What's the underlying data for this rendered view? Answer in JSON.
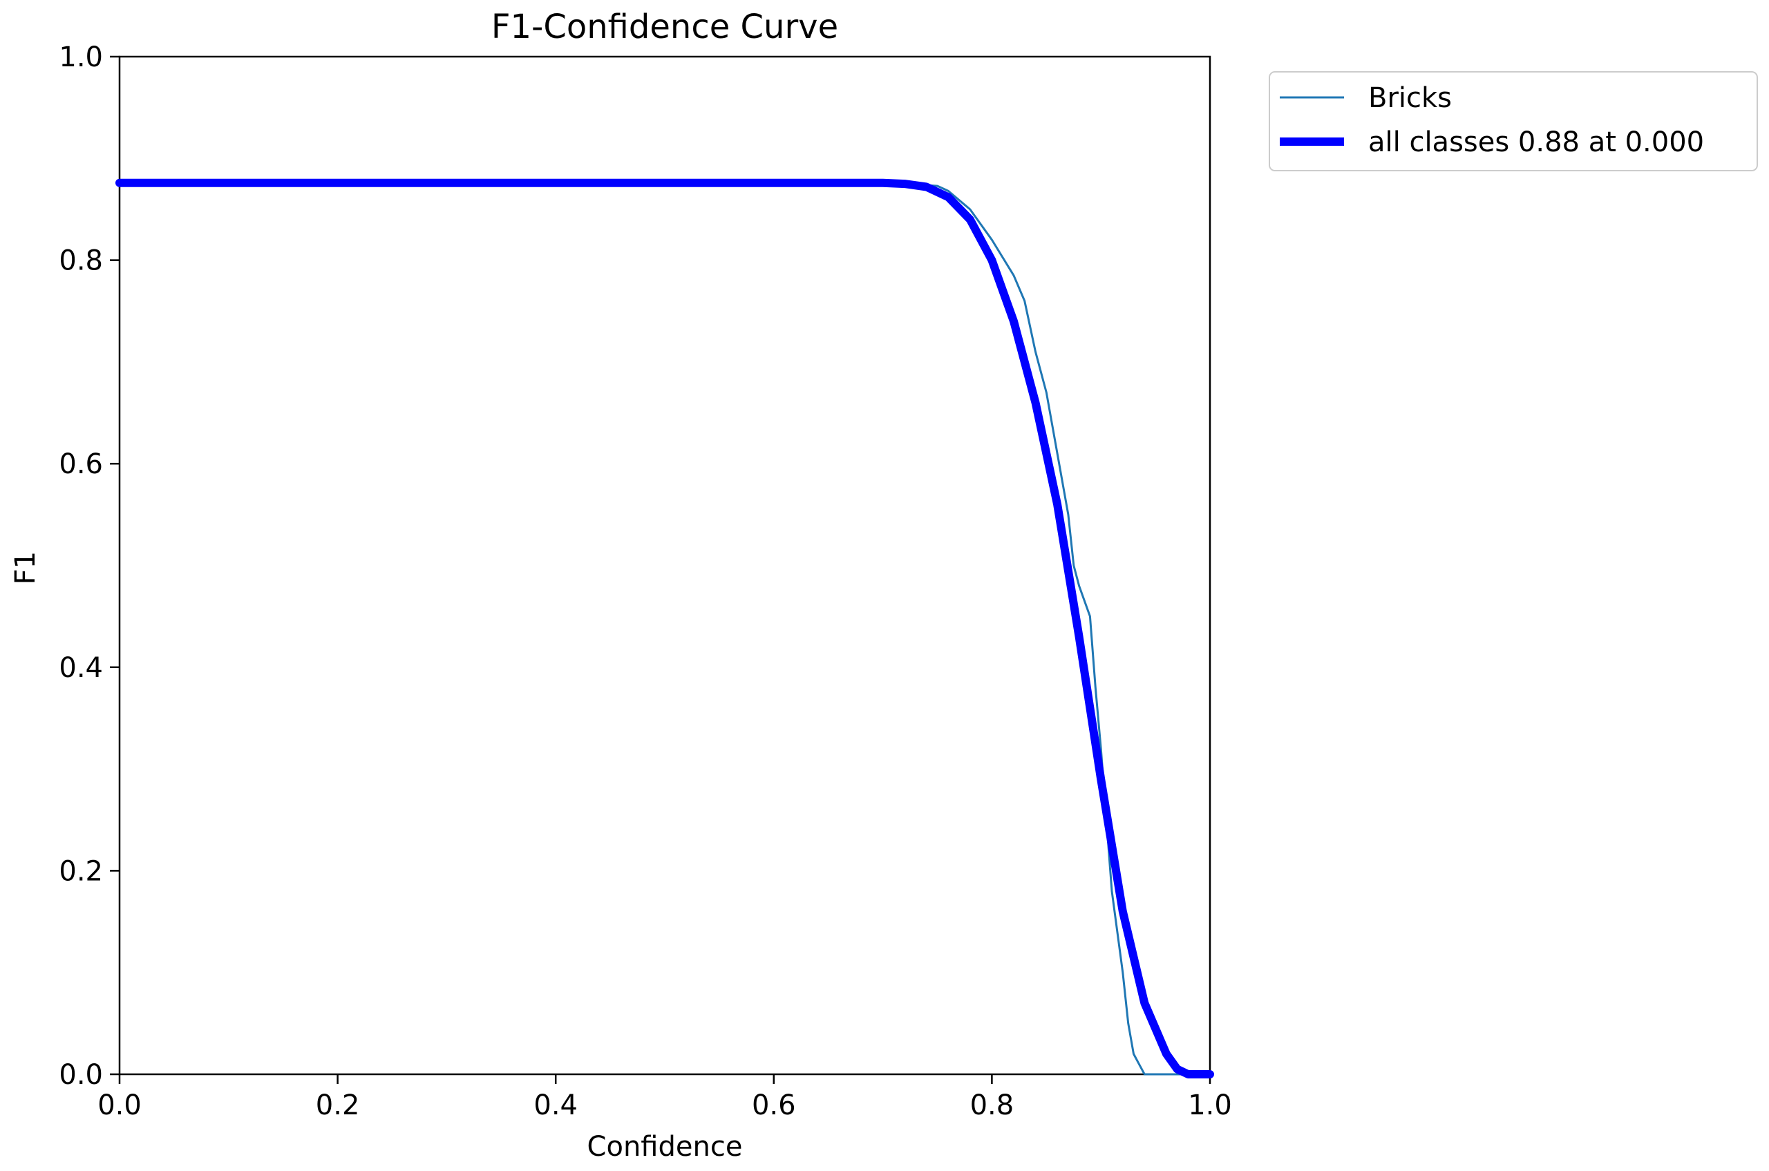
{
  "chart_data": {
    "type": "line",
    "title": "F1-Confidence Curve",
    "xlabel": "Confidence",
    "ylabel": "F1",
    "xlim": [
      0.0,
      1.0
    ],
    "ylim": [
      0.0,
      1.0
    ],
    "xticks": [
      "0.0",
      "0.2",
      "0.4",
      "0.6",
      "0.8",
      "1.0"
    ],
    "yticks": [
      "0.0",
      "0.2",
      "0.4",
      "0.6",
      "0.8",
      "1.0"
    ],
    "grid": false,
    "legend_position": "outside-top-right",
    "series": [
      {
        "name": "Bricks",
        "color": "#1f77b4",
        "x": [
          0.0,
          0.72,
          0.75,
          0.76,
          0.78,
          0.8,
          0.82,
          0.83,
          0.84,
          0.85,
          0.86,
          0.87,
          0.875,
          0.88,
          0.89,
          0.895,
          0.9,
          0.905,
          0.91,
          0.915,
          0.92,
          0.925,
          0.93,
          0.935,
          0.94,
          0.95,
          1.0
        ],
        "y": [
          0.875,
          0.875,
          0.873,
          0.868,
          0.85,
          0.82,
          0.785,
          0.76,
          0.71,
          0.67,
          0.61,
          0.55,
          0.5,
          0.48,
          0.45,
          0.38,
          0.32,
          0.25,
          0.18,
          0.14,
          0.1,
          0.05,
          0.02,
          0.01,
          0.0,
          0.0,
          0.0
        ]
      },
      {
        "name": "all classes 0.88 at 0.000",
        "color": "#0000ff",
        "x": [
          0.0,
          0.7,
          0.72,
          0.74,
          0.76,
          0.78,
          0.8,
          0.82,
          0.84,
          0.86,
          0.88,
          0.9,
          0.92,
          0.94,
          0.96,
          0.97,
          0.98,
          0.99,
          1.0
        ],
        "y": [
          0.876,
          0.876,
          0.875,
          0.872,
          0.862,
          0.84,
          0.8,
          0.74,
          0.66,
          0.56,
          0.43,
          0.29,
          0.16,
          0.07,
          0.02,
          0.005,
          0.0,
          0.0,
          0.0
        ]
      }
    ]
  }
}
